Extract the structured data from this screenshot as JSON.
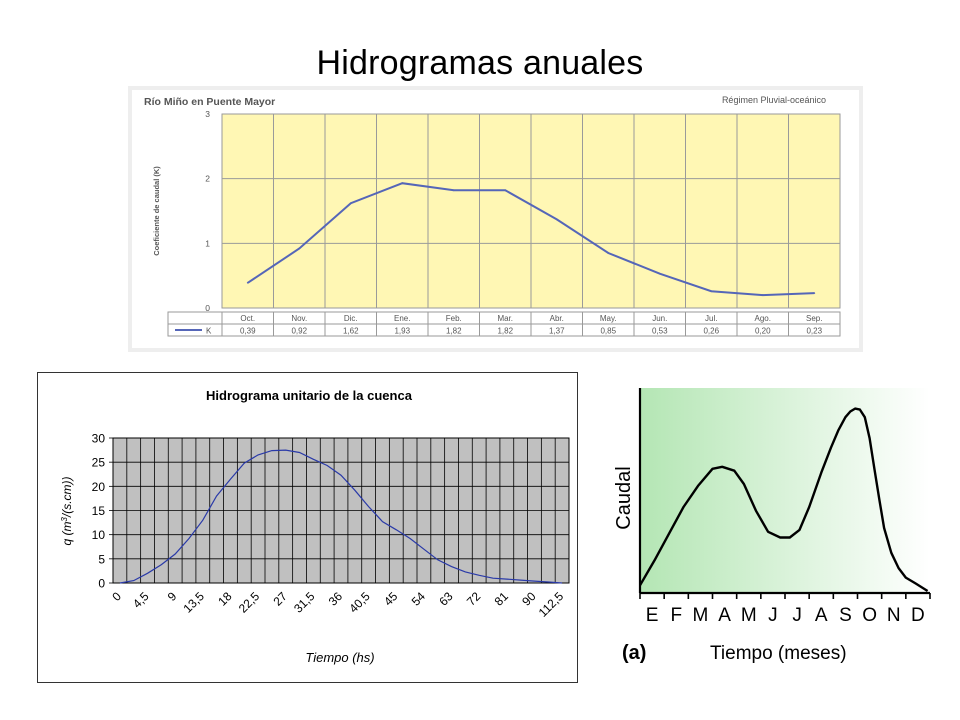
{
  "page": {
    "title": "Hidrogramas anuales"
  },
  "chart_data": [
    {
      "type": "line",
      "title": "Río Miño en Puente Mayor",
      "subtitle": "Régimen Pluvial-oceánico",
      "ylabel": "Coeficiente de caudal (K)",
      "ylim": [
        0,
        3
      ],
      "yticks": [
        "0",
        "1",
        "2",
        "3"
      ],
      "categories": [
        "Oct.",
        "Nov.",
        "Dic.",
        "Ene.",
        "Feb.",
        "Mar.",
        "Abr.",
        "May.",
        "Jun.",
        "Jul.",
        "Ago.",
        "Sep."
      ],
      "series": [
        {
          "name": "K",
          "values": [
            0.39,
            0.92,
            1.62,
            1.93,
            1.82,
            1.82,
            1.37,
            0.85,
            0.53,
            0.26,
            0.2,
            0.23
          ],
          "labels": [
            "0,39",
            "0,92",
            "1,62",
            "1,93",
            "1,82",
            "1,82",
            "1,37",
            "0,85",
            "0,53",
            "0,26",
            "0,20",
            "0,23"
          ]
        }
      ],
      "grid": true,
      "background": "#fff7b4",
      "line_color": "#5566b8"
    },
    {
      "type": "line",
      "title": "Hidrograma unitario de la cuenca",
      "xlabel": "Tiempo (hs)",
      "ylabel_parts": [
        "q (m",
        "3",
        "/(s.cm))"
      ],
      "ylim": [
        0,
        30
      ],
      "yticks": [
        "0",
        "5",
        "10",
        "15",
        "20",
        "25",
        "30"
      ],
      "xticks": [
        "0",
        "4,5",
        "9",
        "13,5",
        "18",
        "22,5",
        "27",
        "31,5",
        "36",
        "40,5",
        "45",
        "54",
        "63",
        "72",
        "81",
        "90",
        "112,5"
      ],
      "x": [
        0,
        2.25,
        4.5,
        6.75,
        9,
        11.25,
        13.5,
        15.75,
        18,
        20.25,
        22.5,
        24.75,
        27,
        29.25,
        31.5,
        33.75,
        36,
        38.25,
        40.5,
        42.75,
        45,
        49.5,
        54,
        58.5,
        63,
        67.5,
        72,
        76.5,
        81,
        85.5,
        90,
        101.25,
        112.5
      ],
      "series": [
        {
          "values": [
            0,
            0.5,
            2,
            3.8,
            6,
            9.2,
            13,
            18,
            21.5,
            24.8,
            26.5,
            27.4,
            27.5,
            27,
            25.6,
            24.3,
            22.3,
            19.2,
            15.8,
            12.7,
            11,
            9.2,
            7,
            4.8,
            3.4,
            2.3,
            1.6,
            1,
            0.8,
            0.6,
            0.4,
            0.2,
            0
          ]
        }
      ],
      "grid": true,
      "plot_background": "#c0c0c0",
      "line_color": "#2a3aa8"
    },
    {
      "type": "line",
      "ylabel": "Caudal",
      "xlabel": "Tiempo (meses)",
      "panel_label": "(a)",
      "categories": [
        "E",
        "F",
        "M",
        "A",
        "M",
        "J",
        "J",
        "A",
        "S",
        "O",
        "N",
        "D"
      ],
      "x": [
        0,
        0.6,
        1.2,
        1.8,
        2.4,
        3.0,
        3.4,
        3.9,
        4.3,
        4.8,
        5.3,
        5.8,
        6.2,
        6.6,
        7.0,
        7.5,
        7.9,
        8.2,
        8.5,
        8.7,
        8.9,
        9.1,
        9.3,
        9.5,
        9.7,
        9.9,
        10.1,
        10.4,
        10.7,
        11.0,
        11.4,
        11.9
      ],
      "series": [
        {
          "values": [
            3,
            16,
            30,
            44,
            55,
            64,
            65,
            63,
            56,
            42,
            31,
            28,
            28,
            32,
            44,
            62,
            75,
            84,
            91,
            94,
            95.5,
            95,
            91,
            80,
            64,
            48,
            33,
            20,
            12,
            7,
            4,
            0
          ]
        }
      ],
      "ylim": [
        0,
        100
      ],
      "gradient": [
        "#b4e6b4",
        "#ffffff"
      ]
    }
  ]
}
